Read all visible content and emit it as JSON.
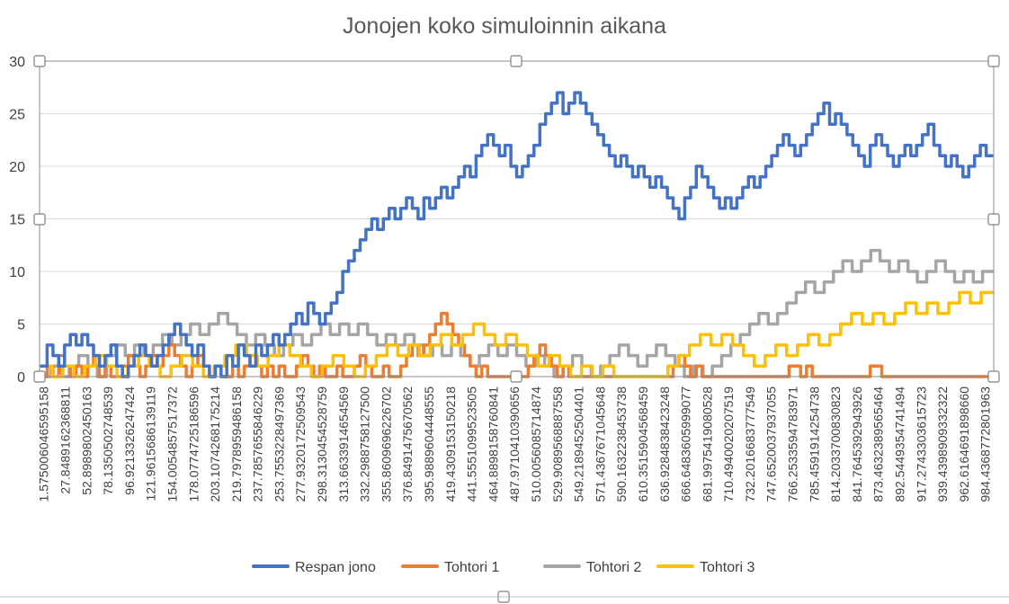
{
  "chart_data": {
    "type": "line",
    "title": "Jonojen koko simuloinnin aikana",
    "xlabel": "",
    "ylabel": "",
    "ylim": [
      0,
      30
    ],
    "yticks": [
      "0",
      "5",
      "10",
      "15",
      "20",
      "25",
      "30"
    ],
    "x_start": 1.575,
    "x_end": 1000,
    "grid": true,
    "legend_position": "bottom",
    "x_tick_labels": [
      "1.575006046595158",
      "27.8489162368811",
      "52.8989802450163",
      "78.1350502748539",
      "96.9213326247424",
      "121.9615686139119",
      "154.0054857517372",
      "178.0774725186596",
      "203.1074268175214",
      "219.7978959486158",
      "237.7857655846229",
      "253.7553228497369",
      "277.9320172509543",
      "298.3130454528759",
      "313.6633914654569",
      "332.2988758127500",
      "355.8609696226702",
      "376.8491475670562",
      "395.9889604448555",
      "419.4309153150218",
      "441.5551099523505",
      "464.8898158760841",
      "487.9710410390656",
      "510.0056085714874",
      "529.9089568887558",
      "549.2189452504401",
      "571.4367671045648",
      "590.1632238453738",
      "610.3515904568459",
      "636.9284838423248",
      "666.6483605999077",
      "681.9975419080528",
      "710.4940020207519",
      "732.2016683777549",
      "747.6520037937055",
      "766.2533594783971",
      "785.4591914254738",
      "814.2033700830823",
      "841.7645392943926",
      "873.4632389565464",
      "892.5449354741494",
      "917.2743303615723",
      "939.4398909332322",
      "962.6164691898660",
      "984.4368772801963"
    ],
    "series": [
      {
        "name": "Respan jono",
        "color": "#4472c4",
        "values": [
          1,
          3,
          2,
          1,
          3,
          4,
          3,
          4,
          3,
          2,
          1,
          2,
          3,
          1,
          0,
          1,
          2,
          3,
          2,
          1,
          2,
          3,
          4,
          5,
          4,
          3,
          2,
          3,
          1,
          0,
          1,
          0,
          2,
          1,
          3,
          2,
          1,
          3,
          2,
          3,
          4,
          3,
          4,
          5,
          6,
          5,
          7,
          6,
          5,
          6,
          7,
          8,
          10,
          11,
          12,
          13,
          14,
          15,
          14,
          15,
          16,
          15,
          16,
          17,
          16,
          15,
          17,
          16,
          17,
          18,
          17,
          18,
          19,
          20,
          19,
          21,
          22,
          23,
          22,
          21,
          22,
          20,
          19,
          20,
          21,
          22,
          24,
          25,
          26,
          27,
          25,
          26,
          27,
          26,
          25,
          24,
          23,
          22,
          21,
          20,
          21,
          20,
          19,
          20,
          19,
          18,
          19,
          18,
          17,
          16,
          15,
          17,
          18,
          20,
          19,
          18,
          17,
          16,
          17,
          16,
          17,
          18,
          19,
          18,
          19,
          20,
          21,
          22,
          23,
          22,
          21,
          22,
          23,
          24,
          25,
          26,
          24,
          25,
          24,
          23,
          22,
          21,
          20,
          22,
          23,
          22,
          21,
          20,
          21,
          22,
          21,
          22,
          23,
          24,
          22,
          21,
          20,
          21,
          20,
          19,
          20,
          21,
          22,
          21
        ]
      },
      {
        "name": "Tohtori 1",
        "color": "#ed7d31",
        "values": [
          0,
          1,
          0,
          2,
          1,
          0,
          1,
          0,
          1,
          2,
          0,
          1,
          0,
          0,
          1,
          2,
          1,
          0,
          1,
          2,
          1,
          2,
          3,
          2,
          1,
          0,
          1,
          2,
          1,
          0,
          1,
          0,
          0,
          1,
          0,
          1,
          2,
          1,
          0,
          1,
          0,
          1,
          0,
          0,
          1,
          2,
          1,
          0,
          1,
          0,
          0,
          1,
          0,
          0,
          1,
          2,
          1,
          0,
          0,
          1,
          0,
          0,
          1,
          2,
          3,
          2,
          3,
          4,
          5,
          6,
          5,
          4,
          3,
          2,
          1,
          0,
          1,
          0,
          0,
          0,
          0,
          0,
          0,
          0,
          1,
          2,
          3,
          2,
          1,
          0,
          1,
          0,
          0,
          0,
          0,
          0,
          0,
          0,
          0,
          0,
          0,
          0,
          0,
          0,
          0,
          0,
          0,
          0,
          0,
          1,
          2,
          1,
          0,
          1,
          0,
          0,
          0,
          0,
          0,
          0,
          0,
          0,
          0,
          0,
          0,
          0,
          0,
          0,
          0,
          1,
          1,
          0,
          1,
          0,
          0,
          0,
          0,
          0,
          0,
          0,
          0,
          0,
          0,
          1,
          1,
          0,
          0,
          0,
          0,
          0,
          0,
          0,
          0,
          0,
          0,
          0,
          0,
          0,
          0,
          0,
          0,
          0,
          0,
          0
        ]
      },
      {
        "name": "Tohtori 2",
        "color": "#a5a5a5",
        "values": [
          0,
          1,
          0,
          1,
          2,
          1,
          0,
          2,
          3,
          2,
          3,
          2,
          3,
          4,
          3,
          4,
          5,
          4,
          5,
          6,
          5,
          4,
          3,
          4,
          3,
          2,
          3,
          4,
          3,
          4,
          5,
          4,
          5,
          4,
          5,
          4,
          3,
          4,
          3,
          4,
          3,
          2,
          3,
          2,
          3,
          2,
          1,
          2,
          3,
          2,
          3,
          2,
          1,
          2,
          1,
          0,
          1,
          2,
          1,
          0,
          1,
          2,
          3,
          2,
          1,
          2,
          3,
          2,
          1,
          0,
          1,
          0,
          1,
          2,
          3,
          4,
          5,
          6,
          5,
          6,
          7,
          8,
          9,
          8,
          9,
          10,
          11,
          10,
          11,
          12,
          11,
          10,
          11,
          10,
          9,
          10,
          11,
          10,
          9,
          10,
          9,
          10
        ]
      },
      {
        "name": "Tohtori 3",
        "color": "#ffc000",
        "values": [
          1,
          0,
          1,
          0,
          1,
          2,
          1,
          0,
          1,
          2,
          1,
          0,
          1,
          2,
          1,
          0,
          1,
          2,
          3,
          2,
          1,
          2,
          3,
          2,
          1,
          0,
          1,
          2,
          1,
          0,
          1,
          2,
          3,
          2,
          3,
          2,
          3,
          4,
          3,
          4,
          5,
          4,
          3,
          4,
          3,
          2,
          1,
          2,
          1,
          0,
          1,
          0,
          1,
          0,
          0,
          0,
          0,
          0,
          1,
          2,
          3,
          4,
          3,
          4,
          3,
          2,
          1,
          2,
          3,
          2,
          3,
          4,
          3,
          4,
          5,
          6,
          5,
          6,
          5,
          6,
          7,
          6,
          7,
          6,
          7,
          8,
          7,
          8
        ]
      }
    ]
  }
}
